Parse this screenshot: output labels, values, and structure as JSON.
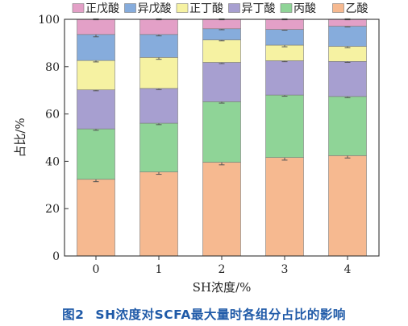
{
  "figure": {
    "label": "图2",
    "caption": "SH浓度对SCFA最大量时各组分占比的影响"
  },
  "chart_data": {
    "type": "bar",
    "stacked": true,
    "title": "",
    "xlabel": "SH浓度/%",
    "ylabel": "占比/%",
    "categories": [
      "0",
      "1",
      "2",
      "3",
      "4"
    ],
    "ylim": [
      0,
      100
    ],
    "yticks": [
      0,
      20,
      40,
      60,
      80,
      100
    ],
    "grid": false,
    "legend_position": "top",
    "legend_order": [
      "正戊酸",
      "异戊酸",
      "正丁酸",
      "异丁酸",
      "丙酸",
      "乙酸"
    ],
    "series": [
      {
        "name": "乙酸",
        "color": "#f6b990",
        "values": [
          32.4,
          35.5,
          39.6,
          41.6,
          42.4
        ],
        "errors": [
          1.0,
          1.0,
          1.1,
          1.1,
          1.0
        ]
      },
      {
        "name": "丙酸",
        "color": "#8fd497",
        "values": [
          21.3,
          20.6,
          25.6,
          26.4,
          25.0
        ],
        "errors": [
          0.6,
          0.6,
          0.6,
          0.5,
          0.5
        ]
      },
      {
        "name": "异丁酸",
        "color": "#a79fd0",
        "values": [
          16.5,
          14.7,
          16.6,
          14.5,
          14.8
        ],
        "errors": [
          0.4,
          0.5,
          0.5,
          0.4,
          0.4
        ]
      },
      {
        "name": "正丁酸",
        "color": "#f6f2a2",
        "values": [
          12.4,
          13.1,
          9.5,
          6.6,
          6.4
        ],
        "errors": [
          0.6,
          0.8,
          0.4,
          0.7,
          0.6
        ]
      },
      {
        "name": "异戊酸",
        "color": "#86acdc",
        "values": [
          11.0,
          9.7,
          4.7,
          6.6,
          8.5
        ],
        "errors": [
          1.0,
          0.6,
          0.4,
          0.3,
          0.3
        ]
      },
      {
        "name": "正戊酸",
        "color": "#e3a0c7",
        "values": [
          6.4,
          6.4,
          4.0,
          4.3,
          2.9
        ],
        "errors": [
          0.2,
          0.2,
          0.2,
          0.2,
          0.2
        ]
      }
    ]
  }
}
